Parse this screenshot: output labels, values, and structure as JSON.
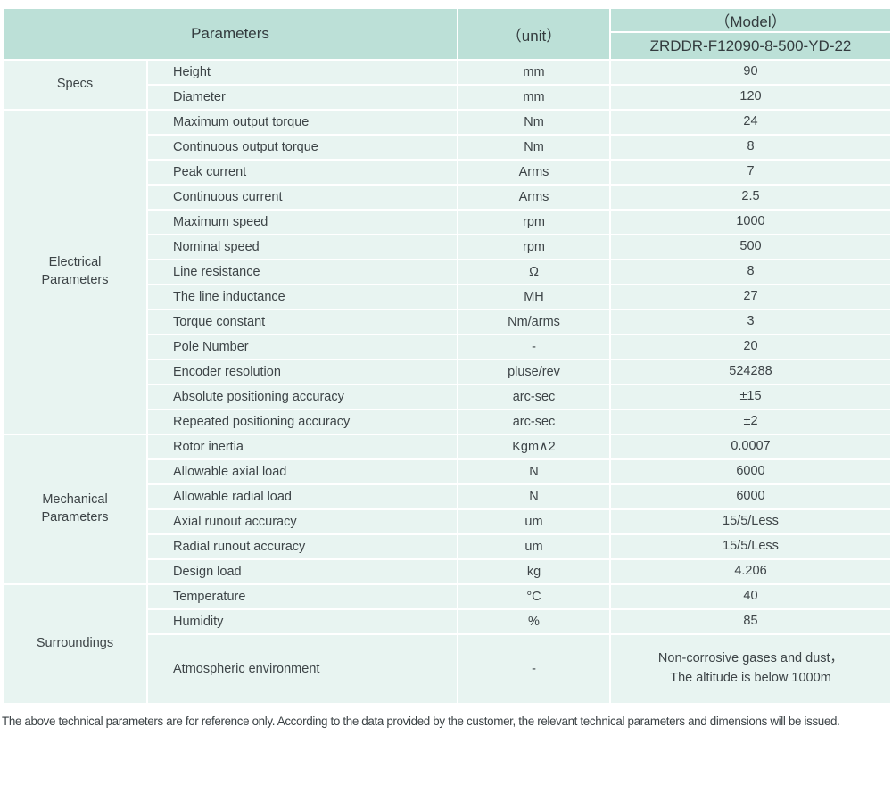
{
  "header": {
    "parameters_label": "Parameters",
    "unit_label": "（unit）",
    "model_label": "（Model）",
    "model_number": "ZRDDR-F12090-8-500-YD-22"
  },
  "table": {
    "groups": [
      {
        "label": "Specs",
        "rows": [
          {
            "name": "Height",
            "unit": "mm",
            "value": "90"
          },
          {
            "name": "Diameter",
            "unit": "mm",
            "value": "120"
          }
        ]
      },
      {
        "label": "Electrical\nParameters",
        "rows": [
          {
            "name": "Maximum output torque",
            "unit": "Nm",
            "value": "24"
          },
          {
            "name": "Continuous output torque",
            "unit": "Nm",
            "value": "8"
          },
          {
            "name": "Peak current",
            "unit": "Arms",
            "value": "7"
          },
          {
            "name": "Continuous current",
            "unit": "Arms",
            "value": "2.5"
          },
          {
            "name": "Maximum speed",
            "unit": "rpm",
            "value": "1000"
          },
          {
            "name": "Nominal speed",
            "unit": "rpm",
            "value": "500"
          },
          {
            "name": "Line resistance",
            "unit": "Ω",
            "value": "8"
          },
          {
            "name": "The line inductance",
            "unit": "MH",
            "value": "27"
          },
          {
            "name": "Torque constant",
            "unit": "Nm/arms",
            "value": "3"
          },
          {
            "name": "Pole Number",
            "unit": "-",
            "value": "20"
          },
          {
            "name": "Encoder resolution",
            "unit": "pluse/rev",
            "value": "524288"
          },
          {
            "name": "Absolute positioning accuracy",
            "unit": "arc-sec",
            "value": "±15"
          },
          {
            "name": "Repeated positioning accuracy",
            "unit": "arc-sec",
            "value": "±2"
          }
        ]
      },
      {
        "label": "Mechanical\nParameters",
        "rows": [
          {
            "name": "Rotor inertia",
            "unit": "Kgm∧2",
            "value": "0.0007"
          },
          {
            "name": "Allowable axial load",
            "unit": "N",
            "value": "6000"
          },
          {
            "name": "Allowable radial load",
            "unit": "N",
            "value": "6000"
          },
          {
            "name": "Axial runout accuracy",
            "unit": "um",
            "value": "15/5/Less"
          },
          {
            "name": "Radial runout accuracy",
            "unit": "um",
            "value": "15/5/Less"
          },
          {
            "name": "Design load",
            "unit": "kg",
            "value": "4.206"
          }
        ]
      },
      {
        "label": "Surroundings",
        "rows": [
          {
            "name": "Temperature",
            "unit": "°C",
            "value": "40"
          },
          {
            "name": "Humidity",
            "unit": "%",
            "value": "85"
          },
          {
            "name": "Atmospheric environment",
            "unit": "-",
            "value": "Non-corrosive gases and dust，\nThe altitude is below 1000m"
          }
        ]
      }
    ]
  },
  "footer": {
    "note": "The above technical parameters are for reference only. According to the data provided by the customer, the relevant technical parameters and dimensions will be issued."
  },
  "colors": {
    "header_bg": "#bce0d7",
    "row_bg": "#e8f4f1",
    "border": "#ffffff",
    "text": "#3d4447"
  }
}
